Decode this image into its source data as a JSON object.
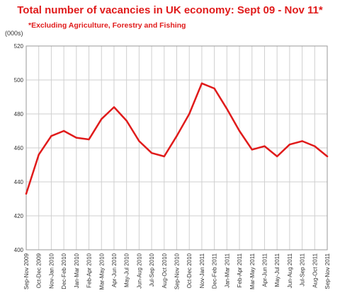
{
  "chart_data": {
    "type": "line",
    "title": "Total number of vacancies in UK economy: Sept 09 - Nov 11*",
    "subtitle": "*Excluding Agriculture, Forestry and Fishing",
    "ylabel": "(000s)",
    "xlabel": "",
    "ylim": [
      400,
      520
    ],
    "yticks": [
      400,
      420,
      440,
      460,
      480,
      500,
      520
    ],
    "grid": true,
    "legend": "none",
    "line_color": "#e01b1b",
    "categories": [
      "Sep-Nov 2009",
      "Oct-Dec 2009",
      "Nov-Jan 2010",
      "Dec-Feb 2010",
      "Jan-Mar 2010",
      "Feb-Apr 2010",
      "Mar-May 2010",
      "Apr-Jun 2010",
      "May-Jul 2010",
      "Jun-Aug 2010",
      "Jul-Sep 2010",
      "Aug-Oct 2010",
      "Sep-Nov 2010",
      "Oct-Dec 2010",
      "Nov-Jan 2011",
      "Dec-Feb 2011",
      "Jan-Mar 2011",
      "Feb-Apr 2011",
      "Mar-May 2011",
      "Apr-Jun 2011",
      "May-Jul 2011",
      "Jun-Aug 2011",
      "Jul-Sep 2011",
      "Aug-Oct 2011",
      "Sep-Nov 2011"
    ],
    "series": [
      {
        "values": [
          433,
          456,
          467,
          470,
          466,
          465,
          477,
          484,
          476,
          464,
          457,
          455,
          467,
          480,
          498,
          495,
          483,
          470,
          459,
          461,
          455,
          462,
          464,
          461,
          455
        ]
      }
    ]
  }
}
